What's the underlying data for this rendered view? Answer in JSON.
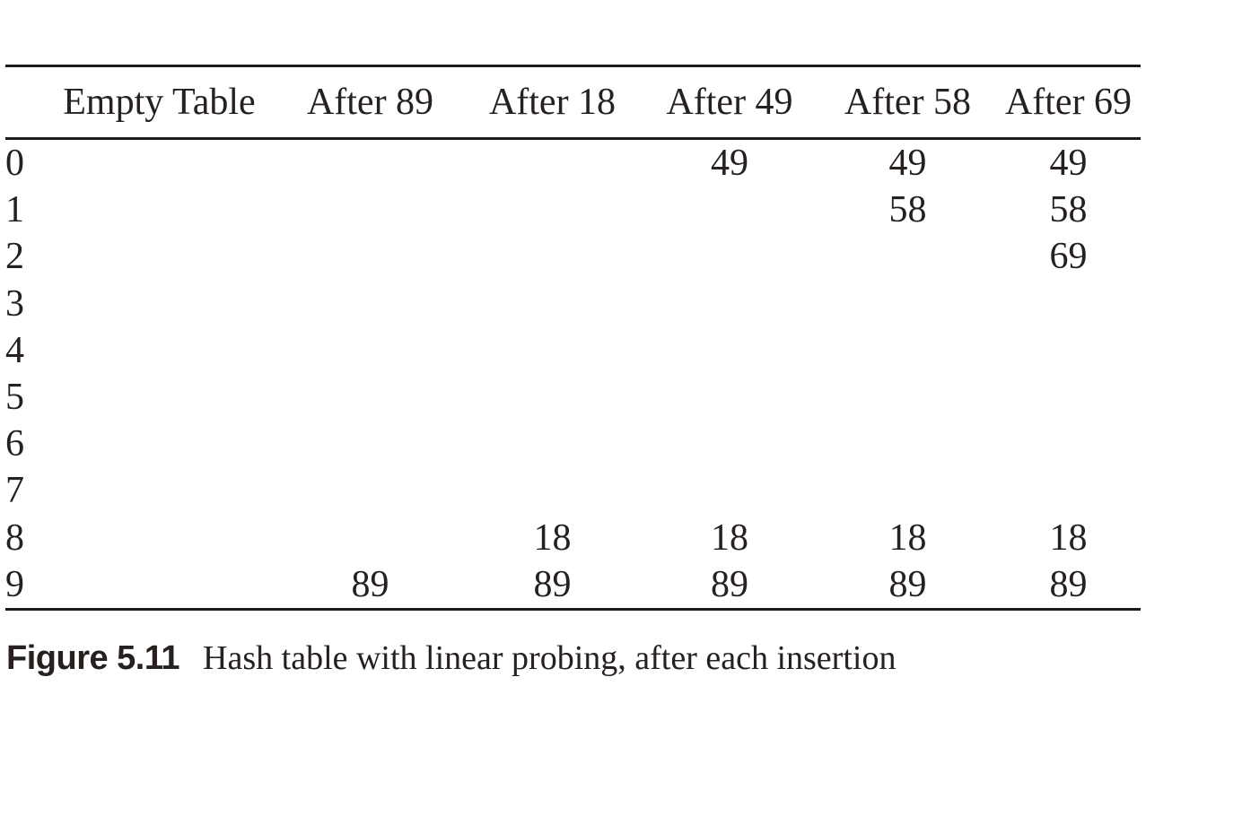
{
  "page": {
    "background": "#ffffff",
    "ink_color": "#26211f",
    "rule_color": "#1b1b1b"
  },
  "table": {
    "columns": [
      "Empty Table",
      "After 89",
      "After 18",
      "After 49",
      "After 58",
      "After 69"
    ],
    "rows": [
      {
        "index": "0",
        "cells": [
          "",
          "",
          "",
          "49",
          "49",
          "49"
        ]
      },
      {
        "index": "1",
        "cells": [
          "",
          "",
          "",
          "",
          "58",
          "58"
        ]
      },
      {
        "index": "2",
        "cells": [
          "",
          "",
          "",
          "",
          "",
          "69"
        ]
      },
      {
        "index": "3",
        "cells": [
          "",
          "",
          "",
          "",
          "",
          ""
        ]
      },
      {
        "index": "4",
        "cells": [
          "",
          "",
          "",
          "",
          "",
          ""
        ]
      },
      {
        "index": "5",
        "cells": [
          "",
          "",
          "",
          "",
          "",
          ""
        ]
      },
      {
        "index": "6",
        "cells": [
          "",
          "",
          "",
          "",
          "",
          ""
        ]
      },
      {
        "index": "7",
        "cells": [
          "",
          "",
          "",
          "",
          "",
          ""
        ]
      },
      {
        "index": "8",
        "cells": [
          "",
          "",
          "18",
          "18",
          "18",
          "18"
        ]
      },
      {
        "index": "9",
        "cells": [
          "",
          "89",
          "89",
          "89",
          "89",
          "89"
        ]
      }
    ]
  },
  "caption": {
    "label": "Figure 5.11",
    "text": "Hash table with linear probing, after each insertion"
  }
}
